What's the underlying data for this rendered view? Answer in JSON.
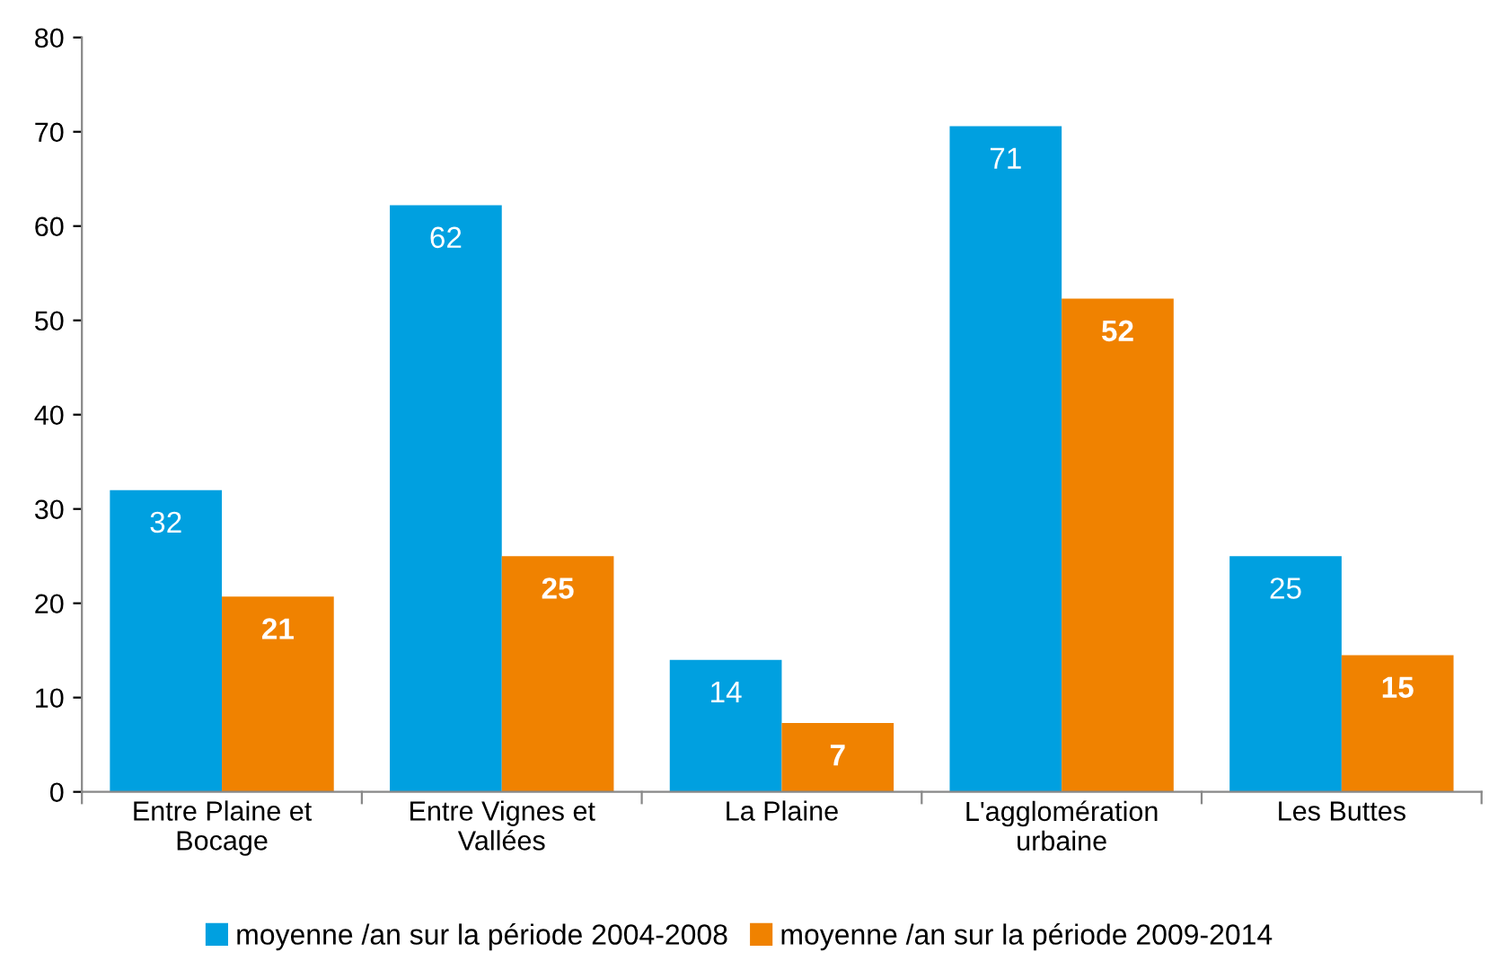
{
  "chart_data": {
    "type": "bar",
    "categories": [
      "Entre Plaine et Bocage",
      "Entre Vignes et Vallées",
      "La Plaine",
      "L'agglomération urbaine",
      "Les Buttes"
    ],
    "series": [
      {
        "name": "moyenne /an sur la période 2004-2008",
        "color": "#00a0e0",
        "values": [
          32,
          62.2,
          14,
          70.6,
          25
        ],
        "value_labels": [
          "32",
          "62",
          "14",
          "71",
          "25"
        ]
      },
      {
        "name": "moyenne /an sur la période 2009-2014",
        "color": "#f08200",
        "values": [
          20.7,
          25,
          7.3,
          52.3,
          14.5
        ],
        "value_labels": [
          "21",
          "25",
          "7",
          "52",
          "15"
        ]
      }
    ],
    "ylim": [
      0,
      80
    ],
    "yticks": [
      0,
      10,
      20,
      30,
      40,
      50,
      60,
      70,
      80
    ],
    "grid": false,
    "legend": "bottom"
  }
}
